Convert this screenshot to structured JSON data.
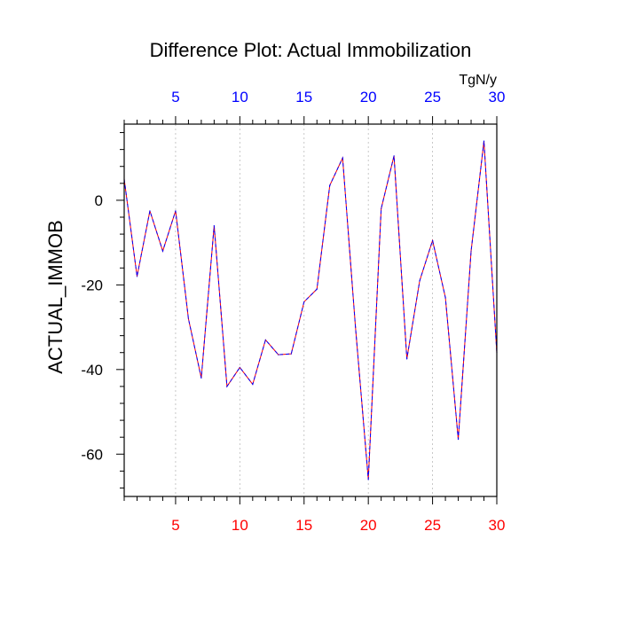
{
  "chart_data": {
    "type": "line",
    "title": "Difference Plot: Actual Immobilization",
    "ylabel": "ACTUAL_IMMOB",
    "units": "TgN/y",
    "xlim": [
      1,
      30
    ],
    "ylim": [
      -70,
      18
    ],
    "x_ticks": [
      5,
      10,
      15,
      20,
      25,
      30
    ],
    "y_ticks": [
      0,
      -20,
      -40,
      -60
    ],
    "x_tick_labels": [
      "5",
      "10",
      "15",
      "20",
      "25",
      "30"
    ],
    "y_tick_labels": [
      "0",
      "-20",
      "-40",
      "-60"
    ],
    "grid": "vertical dashed at major x ticks",
    "colors": {
      "bottom_axis_labels": "#ff0000",
      "top_axis_labels": "#0000ff",
      "line_primary": "#ff0000",
      "line_secondary": "#0000ff"
    },
    "series": [
      {
        "x": [
          1,
          2,
          3,
          4,
          5,
          6,
          7,
          8,
          9,
          10,
          11,
          12,
          13,
          14,
          15,
          16,
          17,
          18,
          19,
          20,
          21,
          22,
          23,
          24,
          25,
          26,
          27,
          28,
          29,
          30
        ],
        "values": [
          5,
          -18,
          -2.5,
          -12,
          -2.5,
          -28,
          -42,
          -6,
          -44,
          -39.5,
          -43.5,
          -33,
          -36.5,
          -36.3,
          -24,
          -21,
          3.5,
          10,
          -30,
          -66,
          -2,
          10.5,
          -37.5,
          -19,
          -9.5,
          -23,
          -56.5,
          -12,
          14,
          -36
        ]
      }
    ]
  }
}
